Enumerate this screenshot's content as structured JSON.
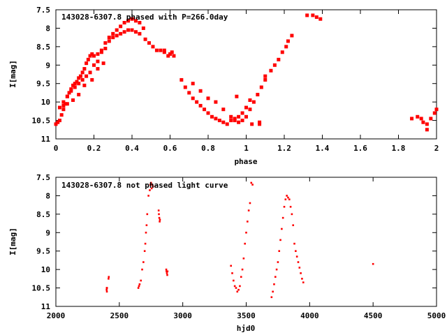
{
  "chart_data": [
    {
      "type": "scatter",
      "title": "143028-6307.8 phased with P=266.0day",
      "xlabel": "phase",
      "ylabel": "I[mag]",
      "xlim": [
        0,
        2
      ],
      "ylim": [
        7.5,
        11
      ],
      "y_inverted": true,
      "grid": false,
      "x_ticks": [
        0,
        0.2,
        0.4,
        0.6,
        0.8,
        1,
        1.2,
        1.4,
        1.6,
        1.8,
        2
      ],
      "x_tick_labels": [
        "0",
        "0.2",
        "0.4",
        "0.6",
        "0.8",
        "1",
        "1.2",
        "1.4",
        "1.6",
        "1.8",
        "2"
      ],
      "y_ticks": [
        7.5,
        8,
        8.5,
        9,
        9.5,
        10,
        10.5,
        11
      ],
      "y_tick_labels": [
        "7.5",
        "8",
        "8.5",
        "9",
        "9.5",
        "10",
        "10.5",
        "11"
      ],
      "color": "#ff0000",
      "series": [
        {
          "x": [
            0.0,
            0.01,
            0.02,
            0.03,
            0.04,
            0.05,
            0.06,
            0.07,
            0.08,
            0.09,
            0.1,
            0.11,
            0.12,
            0.13,
            0.14,
            0.15,
            0.16,
            0.17,
            0.18,
            0.19,
            0.2,
            0.22,
            0.24,
            0.26,
            0.28,
            0.3,
            0.32,
            0.34,
            0.36,
            0.38,
            0.4,
            0.42,
            0.44,
            0.46,
            0.04,
            0.06,
            0.08,
            0.1,
            0.12,
            0.14,
            0.16,
            0.18,
            0.2,
            0.22,
            0.24,
            0.26,
            0.28,
            0.3,
            0.32,
            0.34,
            0.36,
            0.38,
            0.4,
            0.42,
            0.44,
            0.02,
            0.04,
            0.06,
            0.09,
            0.12,
            0.15,
            0.19,
            0.22,
            0.25,
            0.47,
            0.49,
            0.51,
            0.53,
            0.55,
            0.57,
            0.59,
            0.61,
            0.62,
            0.57,
            0.6,
            0.66,
            0.68,
            0.7,
            0.72,
            0.74,
            0.76,
            0.78,
            0.8,
            0.82,
            0.84,
            0.86,
            0.88,
            0.9,
            0.92,
            0.94,
            0.96,
            0.98,
            1.0,
            1.02,
            0.72,
            0.76,
            0.8,
            0.84,
            0.88,
            0.92,
            0.94,
            0.96,
            0.98,
            1.0,
            1.02,
            1.04,
            1.06,
            1.08,
            1.1,
            1.03,
            1.1,
            1.13,
            1.15,
            1.17,
            1.19,
            1.21,
            1.22,
            1.24,
            1.32,
            1.35,
            1.37,
            1.39,
            0.95,
            1.07,
            1.07,
            1.87,
            1.9,
            1.92,
            1.93,
            1.95,
            1.97,
            1.99,
            2.0,
            1.95
          ],
          "y": [
            10.6,
            10.55,
            10.5,
            10.35,
            10.2,
            10.05,
            9.85,
            9.75,
            9.65,
            9.55,
            9.5,
            9.45,
            9.35,
            9.3,
            9.2,
            9.1,
            8.95,
            8.85,
            8.75,
            8.7,
            8.75,
            8.7,
            8.6,
            8.4,
            8.25,
            8.15,
            8.05,
            7.95,
            7.85,
            7.8,
            7.75,
            7.8,
            7.85,
            8.0,
            10.0,
            9.85,
            9.7,
            9.6,
            9.5,
            9.4,
            9.3,
            9.2,
            9.0,
            8.9,
            8.65,
            8.55,
            8.35,
            8.25,
            8.2,
            8.15,
            8.1,
            8.05,
            8.05,
            8.1,
            8.15,
            10.15,
            10.1,
            10.05,
            9.95,
            9.8,
            9.55,
            9.4,
            9.1,
            8.95,
            8.3,
            8.4,
            8.5,
            8.6,
            8.6,
            8.65,
            8.75,
            8.65,
            8.75,
            8.6,
            8.7,
            9.4,
            9.6,
            9.75,
            9.9,
            10.0,
            10.1,
            10.2,
            10.3,
            10.4,
            10.45,
            10.5,
            10.55,
            10.6,
            10.5,
            10.45,
            10.4,
            10.3,
            10.15,
            9.95,
            9.5,
            9.7,
            9.9,
            10.0,
            10.2,
            10.4,
            10.5,
            10.55,
            10.5,
            10.4,
            10.2,
            10.0,
            9.8,
            9.6,
            9.4,
            10.6,
            9.3,
            9.15,
            9.0,
            8.85,
            8.65,
            8.5,
            8.35,
            8.2,
            7.65,
            7.65,
            7.7,
            7.75,
            9.85,
            10.6,
            10.55,
            10.45,
            10.4,
            10.45,
            10.55,
            10.6,
            10.45,
            10.3,
            10.2,
            10.75
          ]
        }
      ]
    },
    {
      "type": "scatter",
      "title": "143028-6307.8 not phased light curve",
      "xlabel": "hjd0",
      "ylabel": "I[mag]",
      "xlim": [
        2000,
        5000
      ],
      "ylim": [
        7.5,
        11
      ],
      "y_inverted": true,
      "grid": false,
      "x_ticks": [
        2000,
        2500,
        3000,
        3500,
        4000,
        4500,
        5000
      ],
      "x_tick_labels": [
        "2000",
        "2500",
        "3000",
        "3500",
        "4000",
        "4500",
        "5000"
      ],
      "y_ticks": [
        7.5,
        8,
        8.5,
        9,
        9.5,
        10,
        10.5,
        11
      ],
      "y_tick_labels": [
        "7.5",
        "8",
        "8.5",
        "9",
        "9.5",
        "10",
        "10.5",
        "11"
      ],
      "color": "#ff0000",
      "series": [
        {
          "x": [
            2400,
            2401,
            2402,
            2403,
            2415,
            2417,
            2650,
            2655,
            2660,
            2670,
            2680,
            2690,
            2700,
            2705,
            2710,
            2715,
            2720,
            2730,
            2740,
            2745,
            2750,
            2755,
            2760,
            2765,
            2810,
            2812,
            2815,
            2818,
            2820,
            2870,
            2872,
            2875,
            2878,
            2880,
            3380,
            3390,
            3400,
            3410,
            3420,
            3430,
            3440,
            3450,
            3460,
            3470,
            3480,
            3490,
            3500,
            3510,
            3520,
            3530,
            3540,
            3550,
            3700,
            3710,
            3720,
            3730,
            3740,
            3750,
            3760,
            3770,
            3780,
            3790,
            3800,
            3810,
            3820,
            3830,
            3840,
            3850,
            3860,
            3870,
            3880,
            3890,
            3900,
            3910,
            3920,
            3930,
            3940,
            3950,
            4500
          ],
          "y": [
            10.55,
            10.5,
            10.6,
            10.5,
            10.25,
            10.2,
            10.5,
            10.45,
            10.4,
            10.3,
            10.0,
            9.8,
            9.5,
            9.3,
            9.0,
            8.8,
            8.5,
            8.0,
            7.85,
            7.7,
            7.65,
            7.8,
            7.7,
            7.75,
            8.4,
            8.5,
            8.6,
            8.7,
            8.65,
            10.0,
            10.05,
            10.1,
            10.15,
            10.05,
            9.9,
            10.1,
            10.3,
            10.45,
            10.5,
            10.6,
            10.55,
            10.45,
            10.2,
            10.0,
            9.7,
            9.3,
            9.0,
            8.7,
            8.4,
            8.2,
            7.65,
            7.7,
            10.75,
            10.6,
            10.4,
            10.2,
            10.0,
            9.8,
            9.5,
            9.2,
            8.9,
            8.6,
            8.3,
            8.1,
            8.0,
            8.05,
            8.1,
            8.3,
            8.5,
            8.8,
            9.3,
            9.5,
            9.65,
            9.8,
            9.95,
            10.1,
            10.25,
            10.35,
            9.85
          ]
        }
      ]
    }
  ]
}
